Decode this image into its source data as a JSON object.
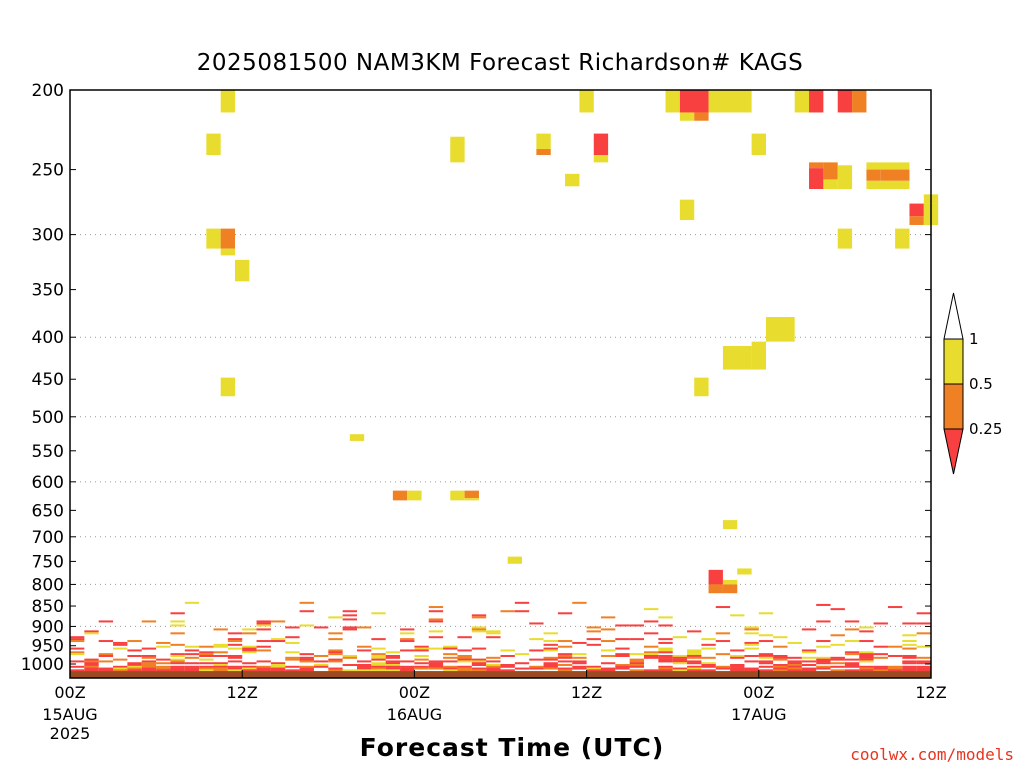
{
  "header": {
    "title": "2025081500 NAM3KM Forecast Richardson# KAGS"
  },
  "footer": {
    "xlabel": "Forecast Time (UTC)",
    "credit": "coolwx.com/models"
  },
  "colors": {
    "yellow": "#e8dc2e",
    "orange": "#f08024",
    "red": "#f84040",
    "ground": "#9c4a20",
    "grid": "#9a9a9a"
  },
  "chart_data": {
    "type": "heatmap",
    "title": "2025081500 NAM3KM Forecast Richardson# KAGS",
    "xlabel": "Forecast Time (UTC)",
    "ylabel": "",
    "x_unit": "forecast hour",
    "xlim": [
      0,
      60
    ],
    "y_unit": "hPa",
    "y_scale": "log",
    "ylim": [
      1040,
      200
    ],
    "y_ticks": [
      200,
      250,
      300,
      350,
      400,
      450,
      500,
      550,
      600,
      650,
      700,
      750,
      800,
      850,
      900,
      950,
      1000
    ],
    "y_grid": [
      300,
      400,
      500,
      600,
      700,
      800,
      900
    ],
    "x_ticks": [
      {
        "hour": 0,
        "label": "00Z",
        "sub": [
          "15AUG",
          "2025"
        ]
      },
      {
        "hour": 12,
        "label": "12Z",
        "sub": []
      },
      {
        "hour": 24,
        "label": "00Z",
        "sub": [
          "16AUG"
        ]
      },
      {
        "hour": 36,
        "label": "12Z",
        "sub": []
      },
      {
        "hour": 48,
        "label": "00Z",
        "sub": [
          "17AUG"
        ]
      },
      {
        "hour": 60,
        "label": "12Z",
        "sub": []
      }
    ],
    "legend": {
      "placement": "right",
      "levels": [
        "1",
        "0.5",
        "0.25"
      ],
      "colors": [
        "#ffffff",
        "#e8dc2e",
        "#f08024",
        "#f84040"
      ]
    },
    "ground_level_hpa": 1020,
    "cells": [
      {
        "t0": 10.5,
        "t1": 11.5,
        "p0": 200,
        "p1": 213,
        "v": "y"
      },
      {
        "t0": 9.5,
        "t1": 10.5,
        "p0": 226,
        "p1": 240,
        "v": "y"
      },
      {
        "t0": 9.5,
        "t1": 10.5,
        "p0": 295,
        "p1": 312,
        "v": "y"
      },
      {
        "t0": 10.5,
        "t1": 11.5,
        "p0": 295,
        "p1": 312,
        "v": "o"
      },
      {
        "t0": 10.5,
        "t1": 11.5,
        "p0": 312,
        "p1": 318,
        "v": "y"
      },
      {
        "t0": 11.5,
        "t1": 12.5,
        "p0": 322,
        "p1": 342,
        "v": "y"
      },
      {
        "t0": 10.5,
        "t1": 11.5,
        "p0": 448,
        "p1": 472,
        "v": "y"
      },
      {
        "t0": 19.5,
        "t1": 20.5,
        "p0": 525,
        "p1": 535,
        "v": "y"
      },
      {
        "t0": 26.5,
        "t1": 27.5,
        "p0": 228,
        "p1": 245,
        "v": "y"
      },
      {
        "t0": 32.5,
        "t1": 33.5,
        "p0": 226,
        "p1": 236,
        "v": "y"
      },
      {
        "t0": 32.5,
        "t1": 33.5,
        "p0": 236,
        "p1": 240,
        "v": "o"
      },
      {
        "t0": 34.5,
        "t1": 35.5,
        "p0": 253,
        "p1": 262,
        "v": "y"
      },
      {
        "t0": 35.5,
        "t1": 36.5,
        "p0": 200,
        "p1": 213,
        "v": "y"
      },
      {
        "t0": 36.5,
        "t1": 37.5,
        "p0": 226,
        "p1": 240,
        "v": "r"
      },
      {
        "t0": 36.5,
        "t1": 37.5,
        "p0": 240,
        "p1": 245,
        "v": "y"
      },
      {
        "t0": 41.5,
        "t1": 42.5,
        "p0": 200,
        "p1": 213,
        "v": "y"
      },
      {
        "t0": 42.5,
        "t1": 44.5,
        "p0": 200,
        "p1": 213,
        "v": "r"
      },
      {
        "t0": 42.5,
        "t1": 43.5,
        "p0": 213,
        "p1": 218,
        "v": "y"
      },
      {
        "t0": 43.5,
        "t1": 44.5,
        "p0": 213,
        "p1": 218,
        "v": "o"
      },
      {
        "t0": 44.5,
        "t1": 47.5,
        "p0": 200,
        "p1": 213,
        "v": "y"
      },
      {
        "t0": 42.5,
        "t1": 43.5,
        "p0": 272,
        "p1": 288,
        "v": "y"
      },
      {
        "t0": 47.5,
        "t1": 48.5,
        "p0": 226,
        "p1": 240,
        "v": "y"
      },
      {
        "t0": 50.5,
        "t1": 51.5,
        "p0": 200,
        "p1": 213,
        "v": "y"
      },
      {
        "t0": 51.5,
        "t1": 52.5,
        "p0": 200,
        "p1": 213,
        "v": "r"
      },
      {
        "t0": 53.5,
        "t1": 54.5,
        "p0": 200,
        "p1": 213,
        "v": "r"
      },
      {
        "t0": 54.5,
        "t1": 55.5,
        "p0": 200,
        "p1": 213,
        "v": "o"
      },
      {
        "t0": 51.5,
        "t1": 52.5,
        "p0": 245,
        "p1": 249,
        "v": "o"
      },
      {
        "t0": 51.5,
        "t1": 52.5,
        "p0": 249,
        "p1": 264,
        "v": "r"
      },
      {
        "t0": 52.5,
        "t1": 53.5,
        "p0": 245,
        "p1": 257,
        "v": "o"
      },
      {
        "t0": 52.5,
        "t1": 53.5,
        "p0": 257,
        "p1": 264,
        "v": "y"
      },
      {
        "t0": 53.5,
        "t1": 54.5,
        "p0": 247,
        "p1": 264,
        "v": "y"
      },
      {
        "t0": 55.5,
        "t1": 58.5,
        "p0": 245,
        "p1": 250,
        "v": "y"
      },
      {
        "t0": 55.5,
        "t1": 56.5,
        "p0": 250,
        "p1": 258,
        "v": "o"
      },
      {
        "t0": 56.5,
        "t1": 58.5,
        "p0": 250,
        "p1": 258,
        "v": "o"
      },
      {
        "t0": 55.5,
        "t1": 58.5,
        "p0": 258,
        "p1": 264,
        "v": "y"
      },
      {
        "t0": 59.5,
        "t1": 60.5,
        "p0": 268,
        "p1": 275,
        "v": "y"
      },
      {
        "t0": 58.5,
        "t1": 59.5,
        "p0": 275,
        "p1": 285,
        "v": "r"
      },
      {
        "t0": 58.5,
        "t1": 59.5,
        "p0": 285,
        "p1": 292,
        "v": "o"
      },
      {
        "t0": 59.5,
        "t1": 60.5,
        "p0": 275,
        "p1": 292,
        "v": "y"
      },
      {
        "t0": 53.5,
        "t1": 54.5,
        "p0": 295,
        "p1": 312,
        "v": "y"
      },
      {
        "t0": 57.5,
        "t1": 58.5,
        "p0": 295,
        "p1": 312,
        "v": "y"
      },
      {
        "t0": 48.5,
        "t1": 50.5,
        "p0": 378,
        "p1": 405,
        "v": "y"
      },
      {
        "t0": 47.5,
        "t1": 48.5,
        "p0": 405,
        "p1": 410,
        "v": "y"
      },
      {
        "t0": 45.5,
        "t1": 47.5,
        "p0": 410,
        "p1": 438,
        "v": "y"
      },
      {
        "t0": 47.5,
        "t1": 48.5,
        "p0": 410,
        "p1": 438,
        "v": "y"
      },
      {
        "t0": 43.5,
        "t1": 44.5,
        "p0": 448,
        "p1": 472,
        "v": "y"
      },
      {
        "t0": 22.5,
        "t1": 23.5,
        "p0": 615,
        "p1": 632,
        "v": "o"
      },
      {
        "t0": 23.5,
        "t1": 24.5,
        "p0": 615,
        "p1": 632,
        "v": "y"
      },
      {
        "t0": 26.5,
        "t1": 27.5,
        "p0": 615,
        "p1": 632,
        "v": "y"
      },
      {
        "t0": 27.5,
        "t1": 28.5,
        "p0": 615,
        "p1": 628,
        "v": "o"
      },
      {
        "t0": 27.5,
        "t1": 28.5,
        "p0": 628,
        "p1": 632,
        "v": "y"
      },
      {
        "t0": 30.5,
        "t1": 31.5,
        "p0": 740,
        "p1": 755,
        "v": "y"
      },
      {
        "t0": 45.5,
        "t1": 46.5,
        "p0": 668,
        "p1": 685,
        "v": "y"
      },
      {
        "t0": 46.5,
        "t1": 47.5,
        "p0": 765,
        "p1": 778,
        "v": "y"
      },
      {
        "t0": 44.5,
        "t1": 45.5,
        "p0": 768,
        "p1": 800,
        "v": "r"
      },
      {
        "t0": 44.5,
        "t1": 45.5,
        "p0": 800,
        "p1": 820,
        "v": "o"
      },
      {
        "t0": 45.5,
        "t1": 46.5,
        "p0": 790,
        "p1": 800,
        "v": "y"
      },
      {
        "t0": 45.5,
        "t1": 46.5,
        "p0": 800,
        "p1": 820,
        "v": "o"
      }
    ],
    "boundary_layer": {
      "p_top": 840,
      "p_bottom": 1020,
      "seed": 20250815,
      "description": "dense mix of yellow, orange and red Richardson number cells in lowest levels across all forecast hours"
    }
  }
}
